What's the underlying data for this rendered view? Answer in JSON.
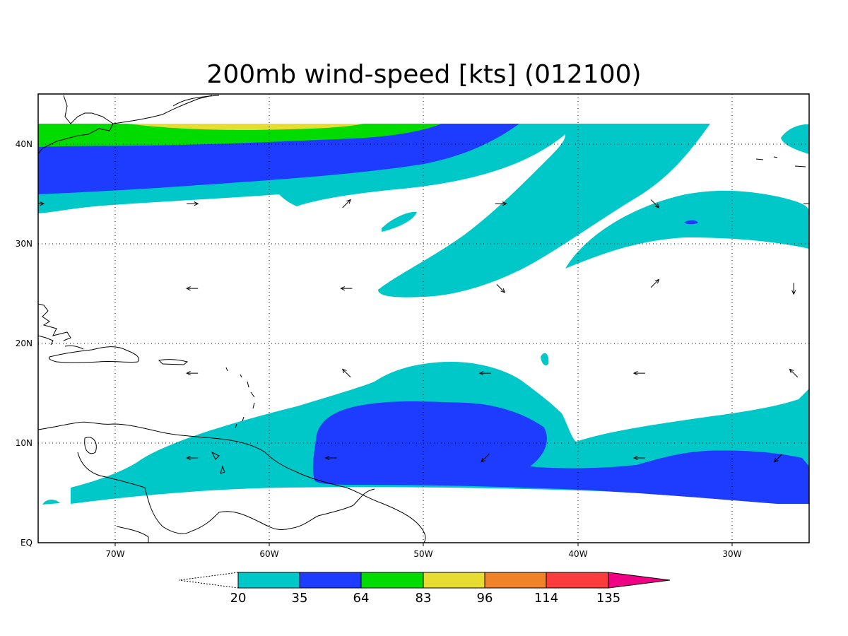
{
  "title": "200mb wind-speed [kts] (012100)",
  "axes": {
    "x_ticks": [
      "70W",
      "60W",
      "50W",
      "40W",
      "30W"
    ],
    "y_ticks": [
      "EQ",
      "10N",
      "20N",
      "30N",
      "40N"
    ]
  },
  "colorbar": {
    "labels": [
      "20",
      "35",
      "64",
      "83",
      "96",
      "114",
      "135"
    ],
    "colors": [
      "#00c8c8",
      "#1e3cff",
      "#00dc00",
      "#e6dc32",
      "#f08228",
      "#fa3c3c",
      "#f00082"
    ]
  },
  "chart_data": {
    "type": "heatmap",
    "variable": "200mb wind-speed",
    "units": "kts",
    "time_code": "012100",
    "lon_range": [
      -75,
      -25
    ],
    "lat_range": [
      0,
      45
    ],
    "contour_levels": [
      20,
      35,
      64,
      83,
      96,
      114,
      135
    ],
    "level_colors": {
      "20-35": "#00c8c8",
      "35-64": "#1e3cff",
      "64-83": "#00dc00",
      "83-96": "#e6dc32",
      "96-114": "#f08228",
      "114-135": "#fa3c3c",
      ">135": "#f00082"
    },
    "wind_vectors": [
      {
        "lon": -75,
        "lat": 34,
        "dir": "E"
      },
      {
        "lon": -65,
        "lat": 34,
        "dir": "E"
      },
      {
        "lon": -55,
        "lat": 34,
        "dir": "NE"
      },
      {
        "lon": -45,
        "lat": 34,
        "dir": "E"
      },
      {
        "lon": -35,
        "lat": 34,
        "dir": "SE"
      },
      {
        "lon": -25,
        "lat": 34,
        "dir": "E"
      },
      {
        "lon": -65,
        "lat": 25.5,
        "dir": "W"
      },
      {
        "lon": -55,
        "lat": 25.5,
        "dir": "W"
      },
      {
        "lon": -45,
        "lat": 25.5,
        "dir": "SE"
      },
      {
        "lon": -35,
        "lat": 26,
        "dir": "NE"
      },
      {
        "lon": -26,
        "lat": 25.5,
        "dir": "S"
      },
      {
        "lon": -65,
        "lat": 17,
        "dir": "W"
      },
      {
        "lon": -55,
        "lat": 17,
        "dir": "NW"
      },
      {
        "lon": -46,
        "lat": 17,
        "dir": "W"
      },
      {
        "lon": -36,
        "lat": 17,
        "dir": "W"
      },
      {
        "lon": -26,
        "lat": 17,
        "dir": "NW"
      },
      {
        "lon": -65,
        "lat": 8.5,
        "dir": "W"
      },
      {
        "lon": -56,
        "lat": 8.5,
        "dir": "W"
      },
      {
        "lon": -46,
        "lat": 8.5,
        "dir": "SW"
      },
      {
        "lon": -36,
        "lat": 8.5,
        "dir": "W"
      },
      {
        "lon": -27,
        "lat": 8.5,
        "dir": "SW"
      }
    ]
  }
}
